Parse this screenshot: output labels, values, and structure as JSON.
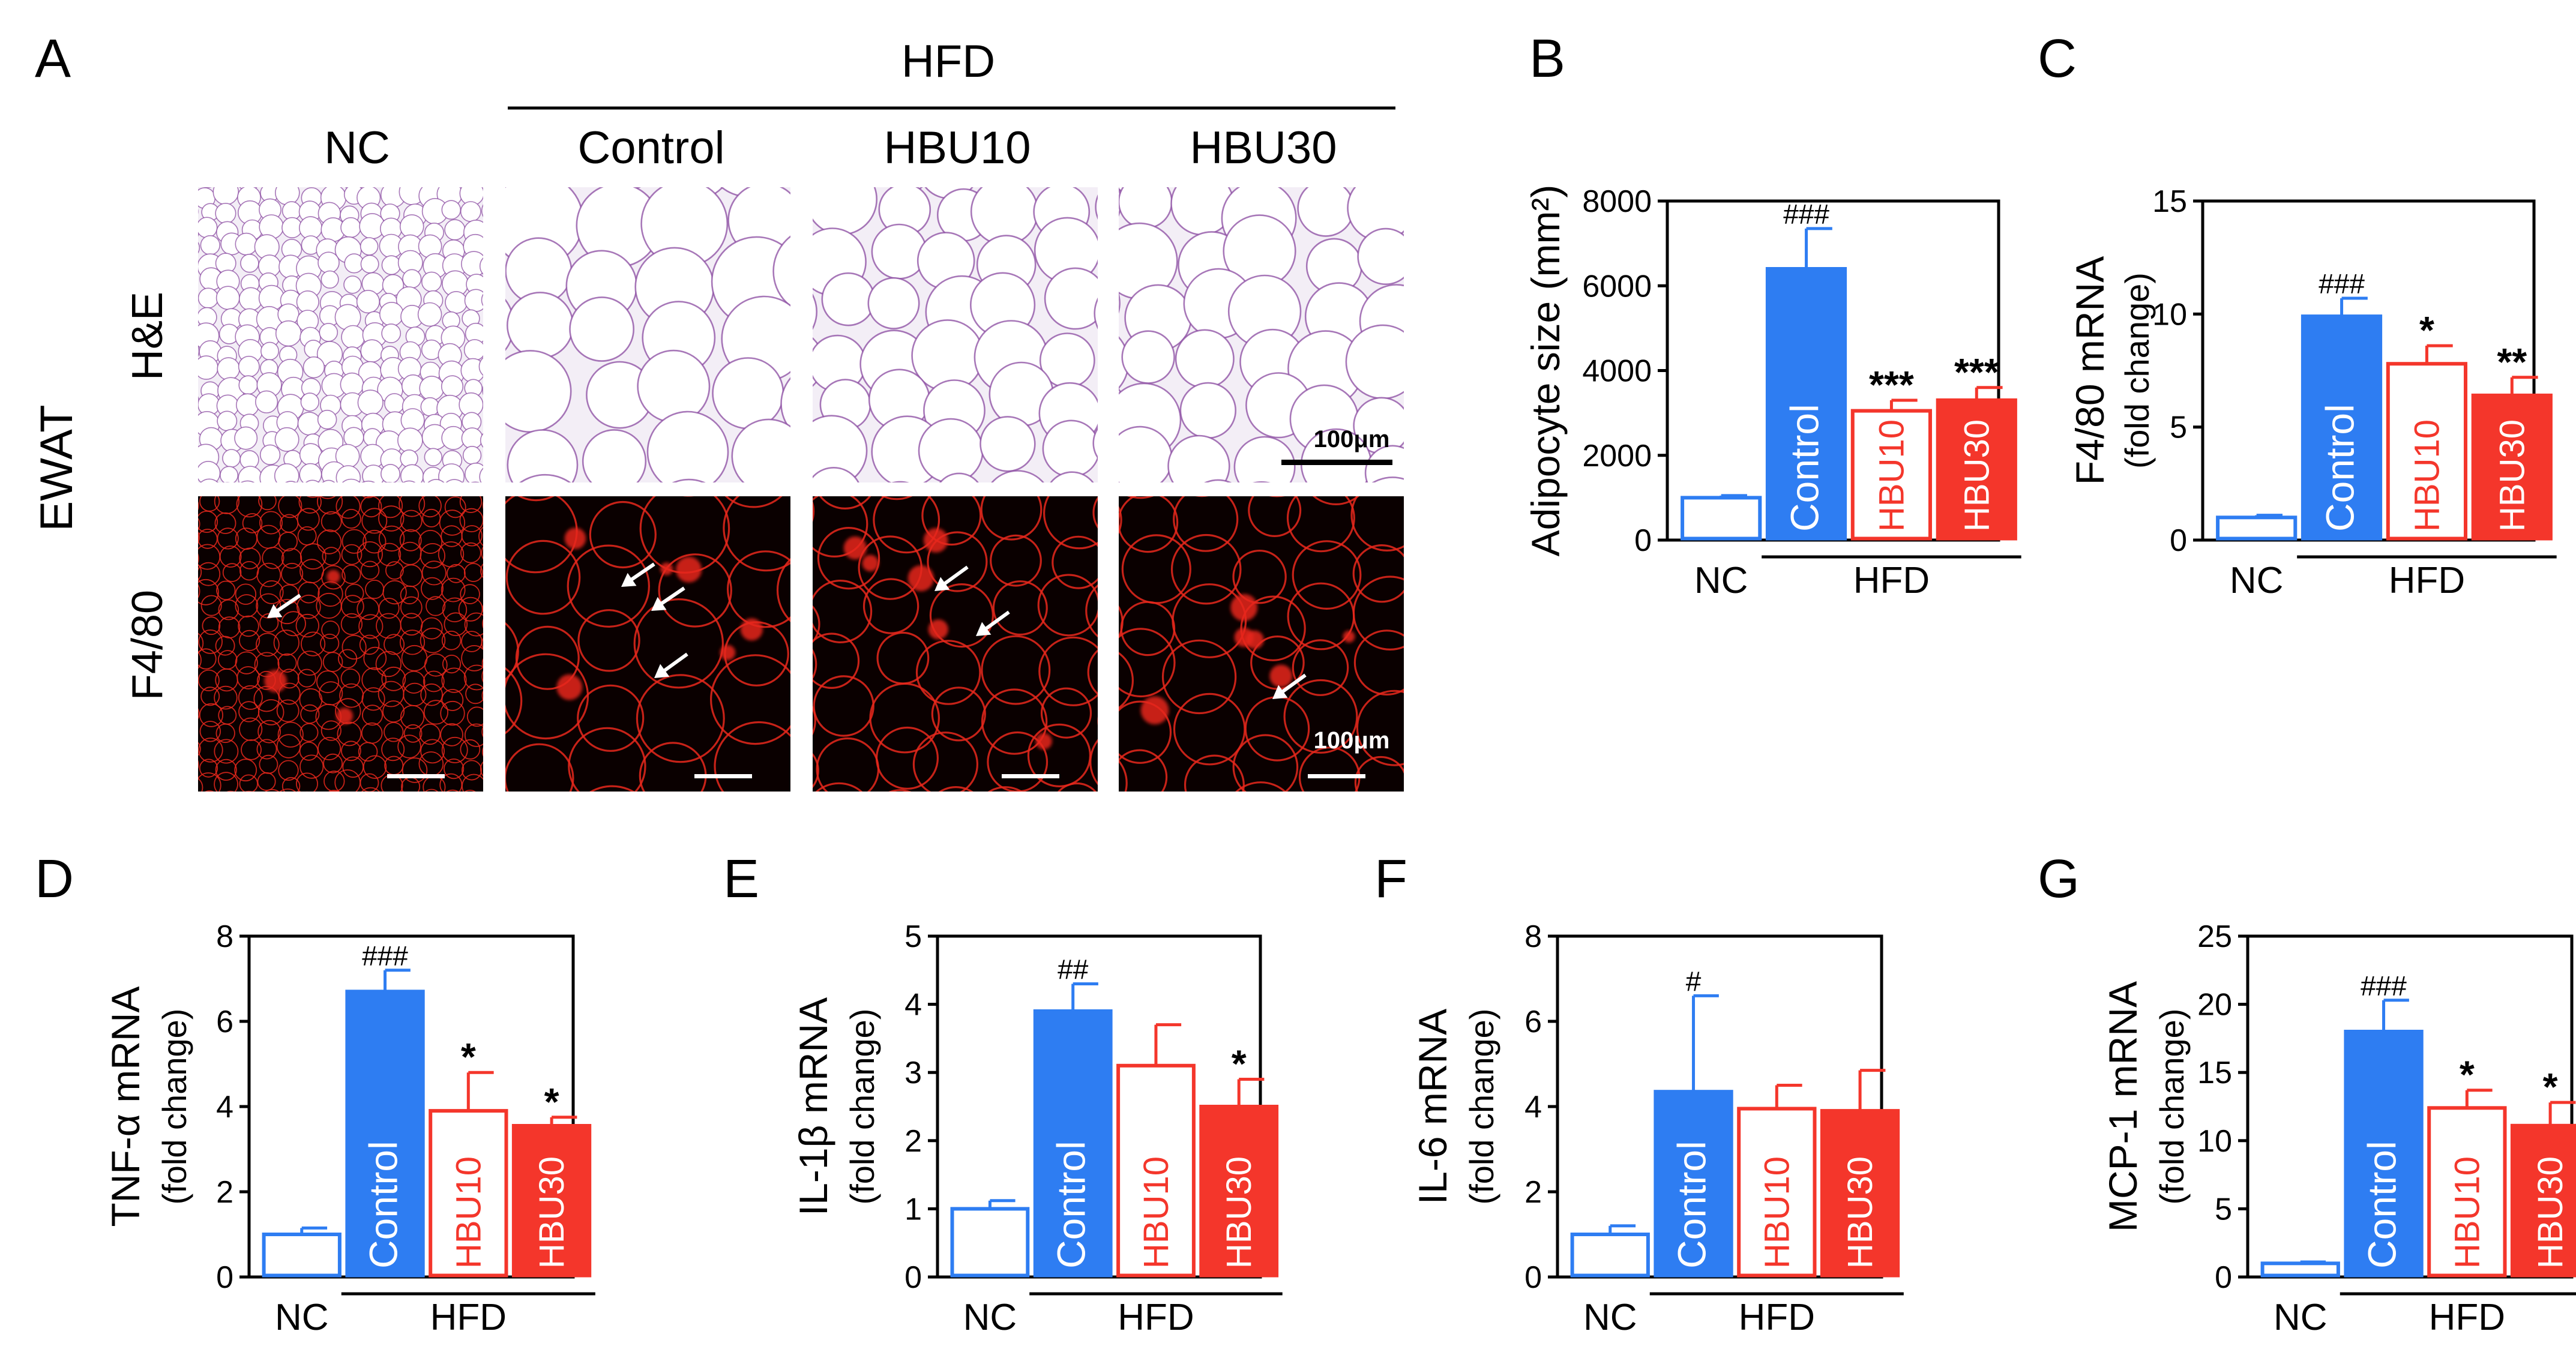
{
  "panel_a": {
    "letter": "A",
    "group_label": "HFD",
    "row_group_label": "EWAT",
    "column_labels": [
      "NC",
      "Control",
      "HBU10",
      "HBU30"
    ],
    "row_labels": [
      "H&E",
      "F4/80"
    ],
    "scale_bar_label": "100μm",
    "colors": {
      "he_background": "#f3eef6",
      "he_membrane": "#8a4aa0",
      "f480_background": "#0a0000",
      "f480_signal": "#e8281c"
    }
  },
  "legend": {
    "colors": {
      "nc": "#2e7df2",
      "control": "#2e7df2",
      "hbu10": "#f4362b",
      "hbu30": "#f4362b"
    },
    "fills": {
      "nc": "none",
      "control": "solid",
      "hbu10": "none",
      "hbu30": "solid"
    }
  },
  "chart_data": [
    {
      "panel": "B",
      "type": "bar",
      "categories": [
        "NC",
        "Control",
        "HBU10",
        "HBU30"
      ],
      "bar_labels": [
        "",
        "Control",
        "HBU10",
        "HBU30"
      ],
      "values": [
        1000,
        6400,
        3050,
        3300
      ],
      "errors": [
        50,
        950,
        250,
        300
      ],
      "annotations": [
        "",
        "###",
        "***",
        "***"
      ],
      "ylabel": "Adipocyte size (mm²)",
      "ylabel2": "",
      "ylim": [
        0,
        8000
      ],
      "yticks": [
        0,
        2000,
        4000,
        6000,
        8000
      ],
      "x_labels": {
        "nc": "NC",
        "hfd": "HFD"
      }
    },
    {
      "panel": "C",
      "type": "bar",
      "categories": [
        "NC",
        "Control",
        "HBU10",
        "HBU30"
      ],
      "bar_labels": [
        "",
        "Control",
        "HBU10",
        "HBU30"
      ],
      "values": [
        1.0,
        9.9,
        7.8,
        6.4
      ],
      "errors": [
        0.1,
        0.8,
        0.8,
        0.8
      ],
      "annotations": [
        "",
        "###",
        "*",
        "**"
      ],
      "ylabel": "F4/80 mRNA",
      "ylabel2": "(fold change)",
      "ylim": [
        0,
        15
      ],
      "yticks": [
        0,
        5,
        10,
        15
      ],
      "x_labels": {
        "nc": "NC",
        "hfd": "HFD"
      }
    },
    {
      "panel": "D",
      "type": "bar",
      "categories": [
        "NC",
        "Control",
        "HBU10",
        "HBU30"
      ],
      "bar_labels": [
        "",
        "Control",
        "HBU10",
        "HBU30"
      ],
      "values": [
        1.0,
        6.7,
        3.9,
        3.55
      ],
      "errors": [
        0.15,
        0.5,
        0.9,
        0.2
      ],
      "annotations": [
        "",
        "###",
        "*",
        "*"
      ],
      "ylabel": "TNF-α mRNA",
      "ylabel2": "(fold change)",
      "ylim": [
        0,
        8
      ],
      "yticks": [
        0,
        2,
        4,
        6,
        8
      ],
      "x_labels": {
        "nc": "NC",
        "hfd": "HFD"
      }
    },
    {
      "panel": "E",
      "type": "bar",
      "categories": [
        "NC",
        "Control",
        "HBU10",
        "HBU30"
      ],
      "bar_labels": [
        "",
        "Control",
        "HBU10",
        "HBU30"
      ],
      "values": [
        1.0,
        3.9,
        3.1,
        2.5
      ],
      "errors": [
        0.12,
        0.4,
        0.6,
        0.4
      ],
      "annotations": [
        "",
        "##",
        "",
        "*"
      ],
      "ylabel": "IL-1β mRNA",
      "ylabel2": "(fold change)",
      "ylim": [
        0,
        5
      ],
      "yticks": [
        0,
        1,
        2,
        3,
        4,
        5
      ],
      "x_labels": {
        "nc": "NC",
        "hfd": "HFD"
      }
    },
    {
      "panel": "F",
      "type": "bar",
      "categories": [
        "NC",
        "Control",
        "HBU10",
        "HBU30"
      ],
      "bar_labels": [
        "",
        "Control",
        "HBU10",
        "HBU30"
      ],
      "values": [
        1.0,
        4.35,
        3.95,
        3.9
      ],
      "errors": [
        0.2,
        2.25,
        0.55,
        0.95
      ],
      "annotations": [
        "",
        "#",
        "",
        ""
      ],
      "ylabel": "IL-6 mRNA",
      "ylabel2": "(fold change)",
      "ylim": [
        0,
        8
      ],
      "yticks": [
        0,
        2,
        4,
        6,
        8
      ],
      "x_labels": {
        "nc": "NC",
        "hfd": "HFD"
      }
    },
    {
      "panel": "G",
      "type": "bar",
      "categories": [
        "NC",
        "Control",
        "HBU10",
        "HBU30"
      ],
      "bar_labels": [
        "",
        "Control",
        "HBU10",
        "HBU30"
      ],
      "values": [
        1.0,
        18.0,
        12.4,
        11.1
      ],
      "errors": [
        0.1,
        2.3,
        1.3,
        1.7
      ],
      "annotations": [
        "",
        "###",
        "*",
        "*"
      ],
      "ylabel": "MCP-1 mRNA",
      "ylabel2": "(fold change)",
      "ylim": [
        0,
        25
      ],
      "yticks": [
        0,
        5,
        10,
        15,
        20,
        25
      ],
      "x_labels": {
        "nc": "NC",
        "hfd": "HFD"
      }
    }
  ]
}
